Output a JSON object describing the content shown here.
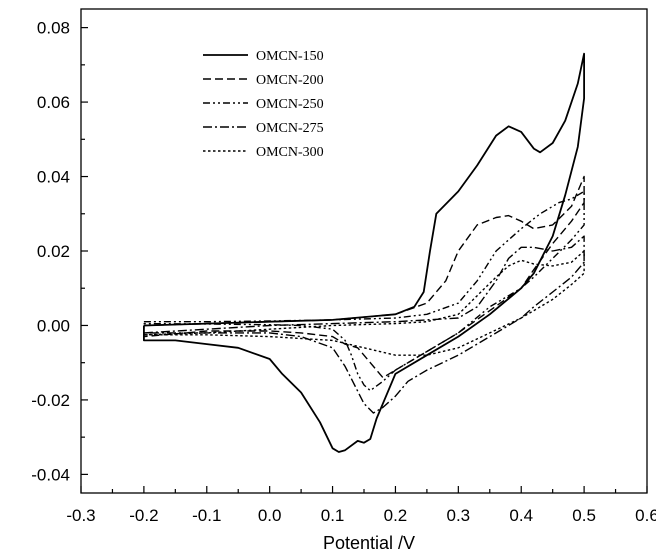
{
  "chart_data": {
    "type": "line",
    "title": "",
    "xlabel": "Potential /V",
    "ylabel": "",
    "xlim": [
      -0.3,
      0.6
    ],
    "ylim": [
      -0.045,
      0.085
    ],
    "x_ticks": [
      -0.3,
      -0.2,
      -0.1,
      0.0,
      0.1,
      0.2,
      0.3,
      0.4,
      0.5,
      0.6
    ],
    "x_tick_labels": [
      "-0.3",
      "-0.2",
      "-0.1",
      "0.0",
      "0.1",
      "0.2",
      "0.3",
      "0.4",
      "0.5",
      "0.6"
    ],
    "y_ticks": [
      -0.04,
      -0.02,
      0.0,
      0.02,
      0.04,
      0.06,
      0.08
    ],
    "y_tick_labels": [
      "-0.04",
      "-0.02",
      "0.00",
      "0.02",
      "0.04",
      "0.06",
      "0.08"
    ],
    "grid": false,
    "legend_position": "top-left",
    "series": [
      {
        "name": "OMCN-150",
        "dash": "solid",
        "x": [
          -0.2,
          -0.1,
          0.0,
          0.1,
          0.2,
          0.23,
          0.245,
          0.255,
          0.265,
          0.3,
          0.33,
          0.36,
          0.38,
          0.4,
          0.42,
          0.43,
          0.45,
          0.47,
          0.49,
          0.5,
          0.5,
          0.49,
          0.47,
          0.45,
          0.42,
          0.4,
          0.35,
          0.3,
          0.25,
          0.2,
          0.17,
          0.16,
          0.15,
          0.14,
          0.12,
          0.11,
          0.1,
          0.08,
          0.05,
          0.02,
          0.0,
          -0.05,
          -0.1,
          -0.15,
          -0.2,
          -0.2
        ],
        "y": [
          0.0,
          0.0005,
          0.001,
          0.0015,
          0.003,
          0.005,
          0.009,
          0.02,
          0.03,
          0.036,
          0.043,
          0.051,
          0.0535,
          0.052,
          0.0475,
          0.0465,
          0.049,
          0.055,
          0.065,
          0.073,
          0.061,
          0.048,
          0.035,
          0.024,
          0.014,
          0.01,
          0.003,
          -0.003,
          -0.008,
          -0.013,
          -0.025,
          -0.0305,
          -0.0315,
          -0.031,
          -0.0335,
          -0.034,
          -0.033,
          -0.026,
          -0.018,
          -0.013,
          -0.009,
          -0.006,
          -0.005,
          -0.004,
          -0.004,
          0.0
        ]
      },
      {
        "name": "OMCN-200",
        "dash": "dashed",
        "x": [
          -0.2,
          -0.1,
          0.0,
          0.1,
          0.2,
          0.25,
          0.28,
          0.3,
          0.33,
          0.36,
          0.38,
          0.4,
          0.42,
          0.45,
          0.48,
          0.5,
          0.5,
          0.48,
          0.45,
          0.42,
          0.4,
          0.35,
          0.3,
          0.25,
          0.22,
          0.2,
          0.18,
          0.16,
          0.14,
          0.12,
          0.1,
          0.05,
          0.0,
          -0.1,
          -0.2,
          -0.2
        ],
        "y": [
          0.0,
          0.0005,
          0.001,
          0.0015,
          0.003,
          0.006,
          0.012,
          0.02,
          0.027,
          0.029,
          0.0295,
          0.028,
          0.026,
          0.027,
          0.032,
          0.04,
          0.033,
          0.028,
          0.022,
          0.015,
          0.01,
          0.004,
          -0.002,
          -0.007,
          -0.01,
          -0.012,
          -0.014,
          -0.01,
          -0.006,
          -0.005,
          -0.003,
          -0.002,
          -0.0015,
          -0.0015,
          -0.003,
          0.0
        ]
      },
      {
        "name": "OMCN-250",
        "dash": "dash-dot-dot",
        "x": [
          -0.2,
          -0.1,
          0.0,
          0.1,
          0.2,
          0.25,
          0.3,
          0.33,
          0.36,
          0.4,
          0.43,
          0.46,
          0.48,
          0.5,
          0.5,
          0.48,
          0.45,
          0.42,
          0.4,
          0.35,
          0.3,
          0.25,
          0.22,
          0.2,
          0.18,
          0.16,
          0.15,
          0.14,
          0.13,
          0.12,
          0.1,
          0.05,
          0.0,
          -0.1,
          -0.2,
          -0.2
        ],
        "y": [
          0.001,
          0.001,
          0.0012,
          0.0015,
          0.002,
          0.003,
          0.006,
          0.012,
          0.02,
          0.026,
          0.03,
          0.033,
          0.034,
          0.036,
          0.027,
          0.023,
          0.018,
          0.013,
          0.01,
          0.005,
          -0.002,
          -0.007,
          -0.01,
          -0.012,
          -0.015,
          -0.0175,
          -0.016,
          -0.013,
          -0.008,
          -0.004,
          -0.001,
          0.0,
          0.0002,
          0.0004,
          0.0005,
          0.001
        ]
      },
      {
        "name": "OMCN-275",
        "dash": "dash-dot",
        "x": [
          -0.2,
          -0.1,
          0.0,
          0.1,
          0.2,
          0.25,
          0.3,
          0.33,
          0.36,
          0.38,
          0.4,
          0.42,
          0.45,
          0.48,
          0.5,
          0.5,
          0.48,
          0.45,
          0.42,
          0.4,
          0.35,
          0.3,
          0.25,
          0.22,
          0.2,
          0.18,
          0.165,
          0.15,
          0.12,
          0.1,
          0.05,
          0.0,
          -0.1,
          -0.2,
          -0.2
        ],
        "y": [
          -0.002,
          -0.001,
          0.0,
          0.0005,
          0.001,
          0.0015,
          0.002,
          0.005,
          0.012,
          0.018,
          0.021,
          0.021,
          0.02,
          0.021,
          0.024,
          0.017,
          0.013,
          0.009,
          0.005,
          0.002,
          -0.003,
          -0.008,
          -0.012,
          -0.015,
          -0.019,
          -0.022,
          -0.0235,
          -0.021,
          -0.011,
          -0.006,
          -0.003,
          -0.002,
          -0.002,
          -0.002,
          -0.002
        ]
      },
      {
        "name": "OMCN-300",
        "dash": "dotted",
        "x": [
          -0.2,
          -0.1,
          0.0,
          0.1,
          0.2,
          0.25,
          0.3,
          0.33,
          0.36,
          0.38,
          0.4,
          0.42,
          0.45,
          0.48,
          0.5,
          0.5,
          0.48,
          0.45,
          0.42,
          0.4,
          0.35,
          0.3,
          0.25,
          0.2,
          0.15,
          0.1,
          0.0,
          -0.1,
          -0.2,
          -0.2
        ],
        "y": [
          -0.0025,
          -0.002,
          -0.001,
          0.0,
          0.0005,
          0.001,
          0.003,
          0.008,
          0.013,
          0.016,
          0.0175,
          0.0165,
          0.016,
          0.017,
          0.02,
          0.014,
          0.011,
          0.007,
          0.004,
          0.002,
          -0.002,
          -0.006,
          -0.008,
          -0.008,
          -0.006,
          -0.004,
          -0.003,
          -0.0025,
          -0.0025,
          -0.0025
        ]
      }
    ]
  }
}
